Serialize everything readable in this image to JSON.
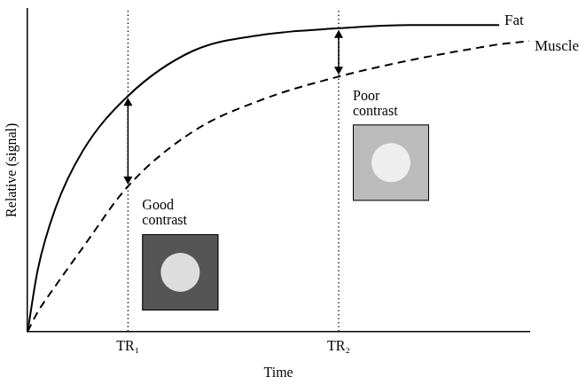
{
  "chart_data": {
    "type": "line",
    "x_label": "Time",
    "y_label": "Relative (signal)",
    "x": [
      0,
      0.2,
      0.55,
      1.1,
      2,
      3.3,
      4.7,
      6.2,
      7.6,
      9,
      9.4,
      10
    ],
    "series": [
      {
        "name": "Fat",
        "color": "#000000",
        "line_style": "solid",
        "values": [
          0,
          0.19,
          0.38,
          0.56,
          0.73,
          0.87,
          0.92,
          0.94,
          0.95,
          0.95,
          0.95,
          null
        ]
      },
      {
        "name": "Muscle",
        "color": "#000000",
        "line_style": "dashed",
        "values": [
          0,
          0.06,
          0.14,
          0.26,
          0.45,
          0.62,
          0.72,
          0.79,
          0.84,
          0.88,
          0.89,
          0.9
        ]
      }
    ],
    "xlim": [
      0,
      10
    ],
    "xticks": [
      {
        "value": 2,
        "label": "TR₁"
      },
      {
        "value": 6.2,
        "label": "TR₂"
      }
    ],
    "ylim": [
      0,
      1
    ],
    "tick_labels": "x",
    "grid": false,
    "annotations": [
      "Good contrast",
      "Poor contrast"
    ]
  }
}
